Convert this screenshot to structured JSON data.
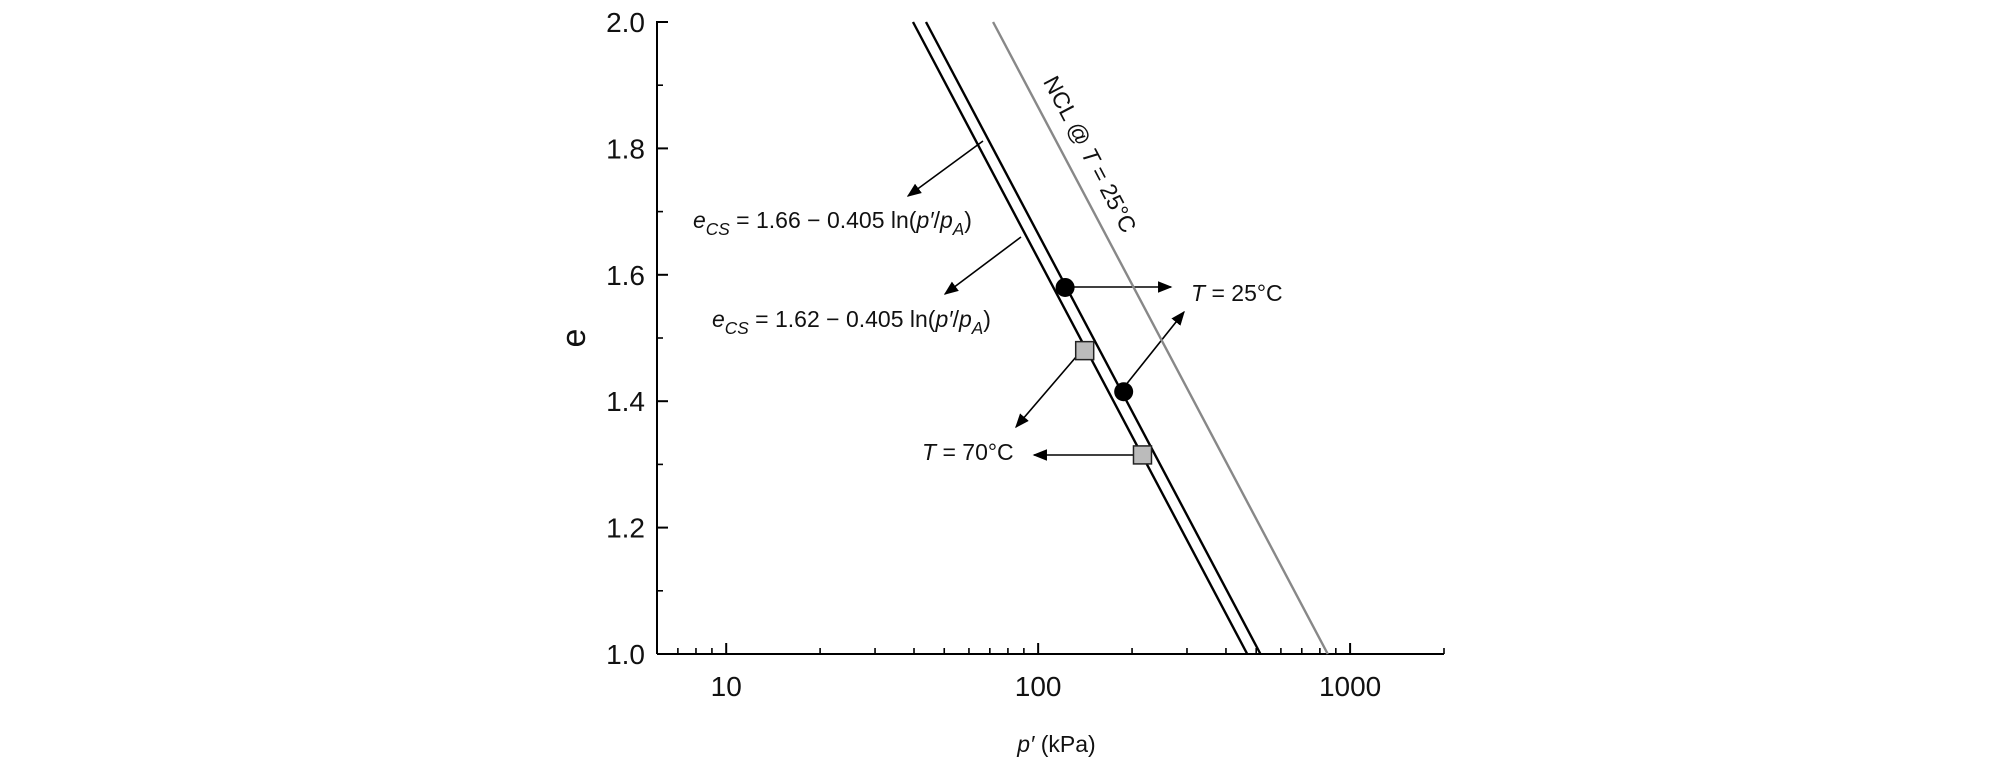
{
  "chart_data": {
    "type": "scatter",
    "xlabel_parts": [
      {
        "text": "p′",
        "style": "italic"
      },
      {
        "text": " (kPa)"
      }
    ],
    "ylabel": "e",
    "xscale": "log",
    "xlim": [
      6,
      2000
    ],
    "ylim": [
      1.0,
      2.0
    ],
    "xticks": [
      10,
      100,
      1000
    ],
    "xminor": [
      6,
      7,
      8,
      9,
      20,
      30,
      40,
      50,
      60,
      70,
      80,
      90,
      200,
      300,
      400,
      500,
      600,
      700,
      800,
      900,
      2000
    ],
    "yticks": [
      {
        "value": 1.0,
        "label": "1.0"
      },
      1.2,
      1.4,
      1.6,
      1.8,
      {
        "value": 2.0,
        "label": "2.0"
      }
    ],
    "yminor": [
      1.1,
      1.3,
      1.5,
      1.7,
      1.9
    ],
    "series": [
      {
        "marker": "line",
        "color": "#000000",
        "x": [
          43.7,
          516
        ],
        "y": [
          2.0,
          1.0
        ],
        "name_parts": [
          {
            "text": "e",
            "style": "italic"
          },
          {
            "text": "CS",
            "style": "sub"
          },
          {
            "text": " = 1.66 − 0.405 ln("
          },
          {
            "text": "p′",
            "style": "italic"
          },
          {
            "text": "/"
          },
          {
            "text": "p",
            "style": "italic"
          },
          {
            "text": "A",
            "style": "sub"
          },
          {
            "text": ")"
          }
        ]
      },
      {
        "marker": "line",
        "color": "#000000",
        "x": [
          39.7,
          468
        ],
        "y": [
          2.0,
          1.0
        ],
        "name_parts": [
          {
            "text": "e",
            "style": "italic"
          },
          {
            "text": "CS",
            "style": "sub"
          },
          {
            "text": " = 1.62 − 0.405 ln("
          },
          {
            "text": "p′",
            "style": "italic"
          },
          {
            "text": "/"
          },
          {
            "text": "p",
            "style": "italic"
          },
          {
            "text": "A",
            "style": "sub"
          },
          {
            "text": ")"
          }
        ]
      },
      {
        "marker": "line",
        "color": "#888888",
        "x": [
          71.7,
          848
        ],
        "y": [
          2.0,
          1.0
        ],
        "name_parts": [
          {
            "text": "NCL @ "
          },
          {
            "text": "T",
            "style": "italic"
          },
          {
            "text": " = 25°C"
          }
        ]
      },
      {
        "marker": "circle",
        "color": "#000000",
        "x": [
          122,
          188
        ],
        "y": [
          1.58,
          1.415
        ],
        "name_parts": [
          {
            "text": "T",
            "style": "italic"
          },
          {
            "text": " = 25°C"
          }
        ]
      },
      {
        "marker": "square",
        "color": "#bbbbbb",
        "x": [
          141,
          216
        ],
        "y": [
          1.48,
          1.315
        ],
        "name_parts": [
          {
            "text": "T",
            "style": "italic"
          },
          {
            "text": " = 70°C"
          }
        ]
      }
    ]
  }
}
